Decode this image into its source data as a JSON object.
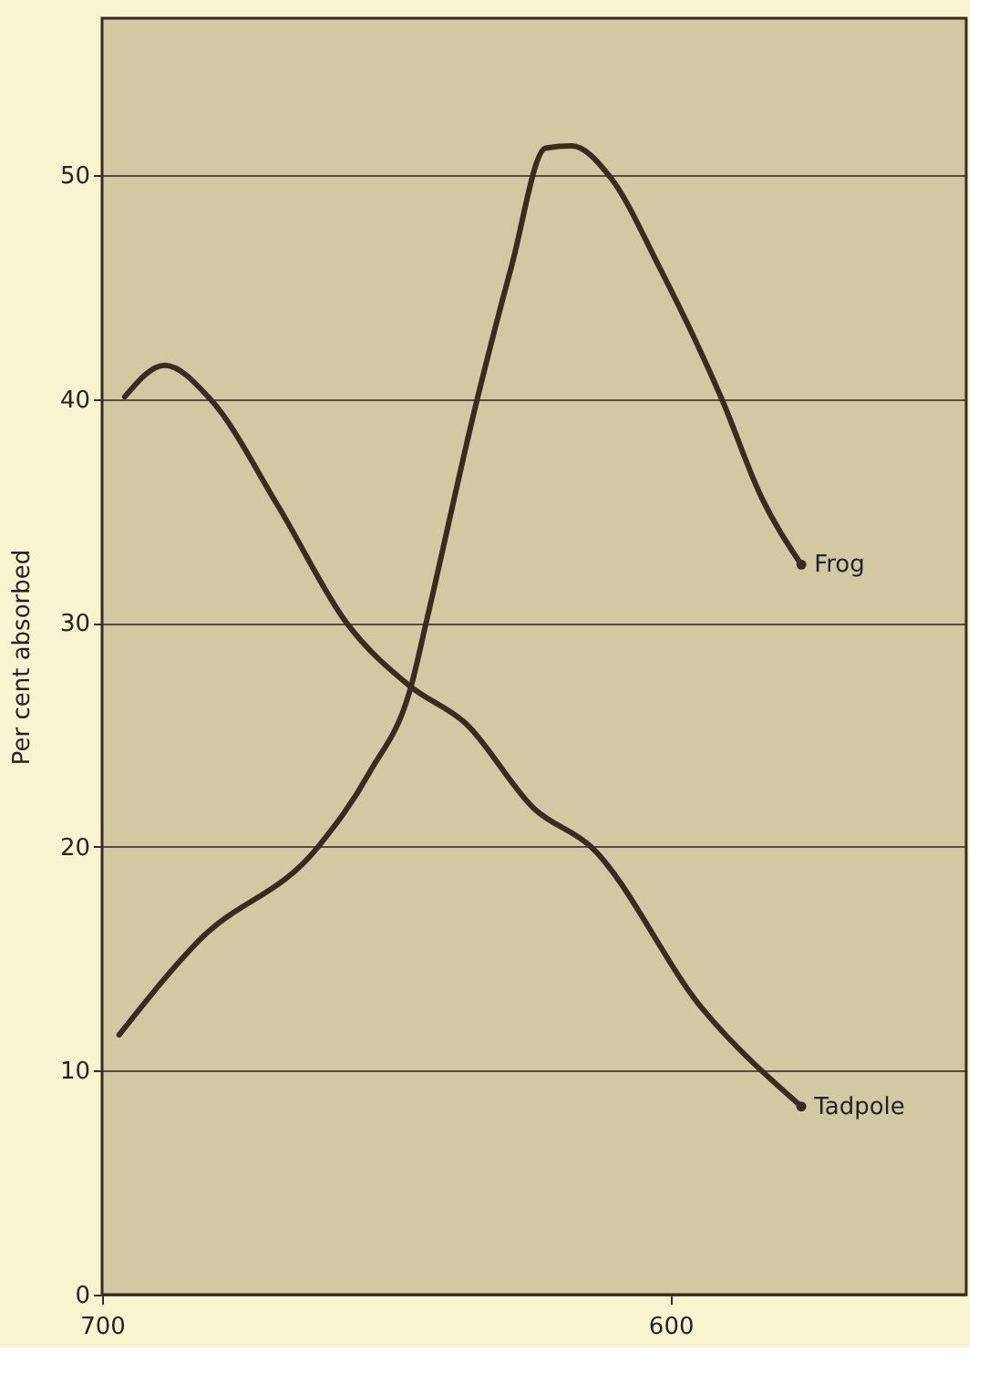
{
  "chart_data": {
    "type": "line",
    "ylabel": "Per cent absorbed",
    "xlim": [
      700,
      548
    ],
    "xticks": [
      700,
      600
    ],
    "ylim": [
      0,
      57
    ],
    "yticks": [
      0,
      10,
      20,
      30,
      40,
      50
    ],
    "grid": "y",
    "legend": false,
    "marker": "none",
    "line_style": "solid",
    "series": [
      {
        "name": "Frog",
        "color": "#3b2a1e",
        "x": [
          697,
          683,
          662,
          653,
          645.5,
          643,
          634,
          628,
          622,
          617.4,
          610.6,
          602,
          591,
          584,
          577
        ],
        "values": [
          11.6,
          15.8,
          20,
          23.3,
          27.3,
          30,
          40,
          45.9,
          51.2,
          51.3,
          49.9,
          45.9,
          40,
          35.6,
          32.6
        ]
      },
      {
        "name": "Tadpole",
        "color": "#3b2a1e",
        "x": [
          696,
          689,
          681,
          669,
          657,
          646,
          636,
          624,
          614,
          594.5,
          577
        ],
        "values": [
          40.1,
          41.5,
          40,
          35.2,
          30,
          27.2,
          25.5,
          21.7,
          20,
          12.8,
          8.4
        ]
      }
    ]
  }
}
